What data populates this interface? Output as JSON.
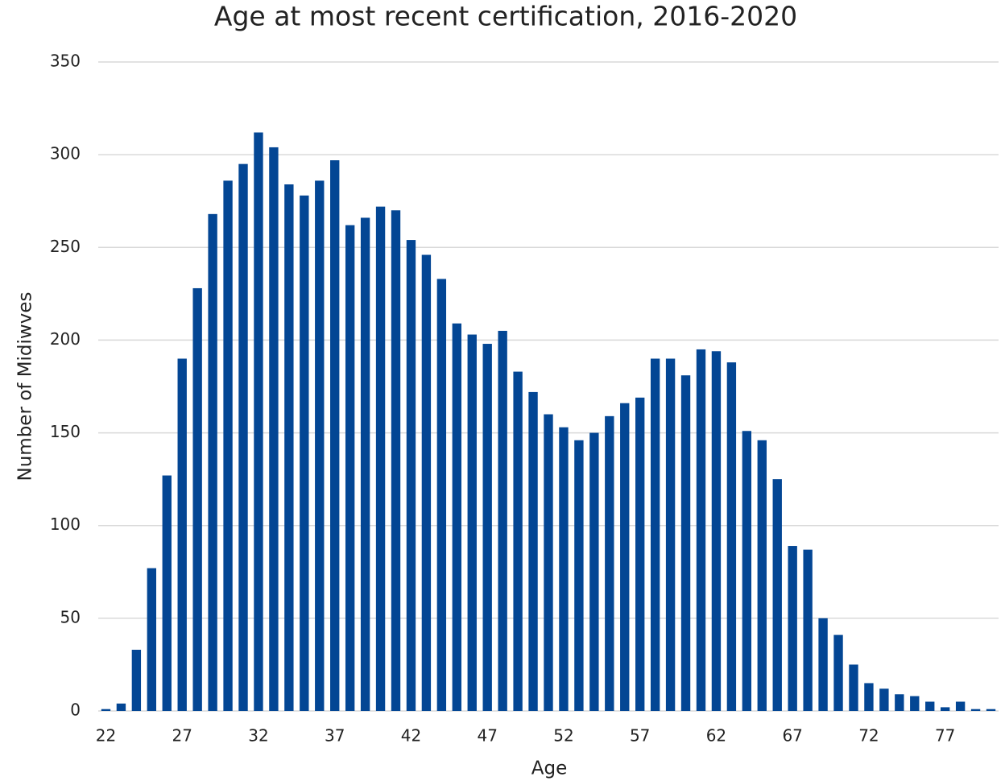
{
  "chart_data": {
    "type": "bar",
    "title": "Age at most recent certification, 2016-2020",
    "x_label": "Age",
    "y_label": "Number of Midiwves",
    "categories": [
      "22",
      null,
      null,
      null,
      null,
      "27",
      null,
      null,
      null,
      null,
      "32",
      null,
      null,
      null,
      null,
      "37",
      null,
      null,
      null,
      null,
      "42",
      null,
      null,
      null,
      null,
      "47",
      null,
      null,
      null,
      null,
      "52",
      null,
      null,
      null,
      null,
      "57",
      null,
      null,
      null,
      null,
      "62",
      null,
      null,
      null,
      null,
      "67",
      null,
      null,
      null,
      null,
      "72",
      null,
      null,
      null,
      null,
      "77",
      null,
      null,
      null
    ],
    "values": [
      1,
      4,
      33,
      77,
      127,
      190,
      228,
      268,
      286,
      295,
      312,
      304,
      284,
      278,
      286,
      297,
      262,
      266,
      272,
      270,
      254,
      246,
      233,
      209,
      203,
      198,
      205,
      183,
      172,
      160,
      153,
      146,
      150,
      159,
      166,
      169,
      190,
      190,
      181,
      195,
      194,
      188,
      151,
      146,
      125,
      89,
      87,
      50,
      41,
      25,
      15,
      12,
      9,
      8,
      5,
      2,
      5,
      1,
      1
    ],
    "color": "#034694",
    "ylim": [
      0,
      350
    ],
    "yticks": [
      0,
      50,
      100,
      150,
      200,
      250,
      300,
      350
    ],
    "grid": true
  }
}
